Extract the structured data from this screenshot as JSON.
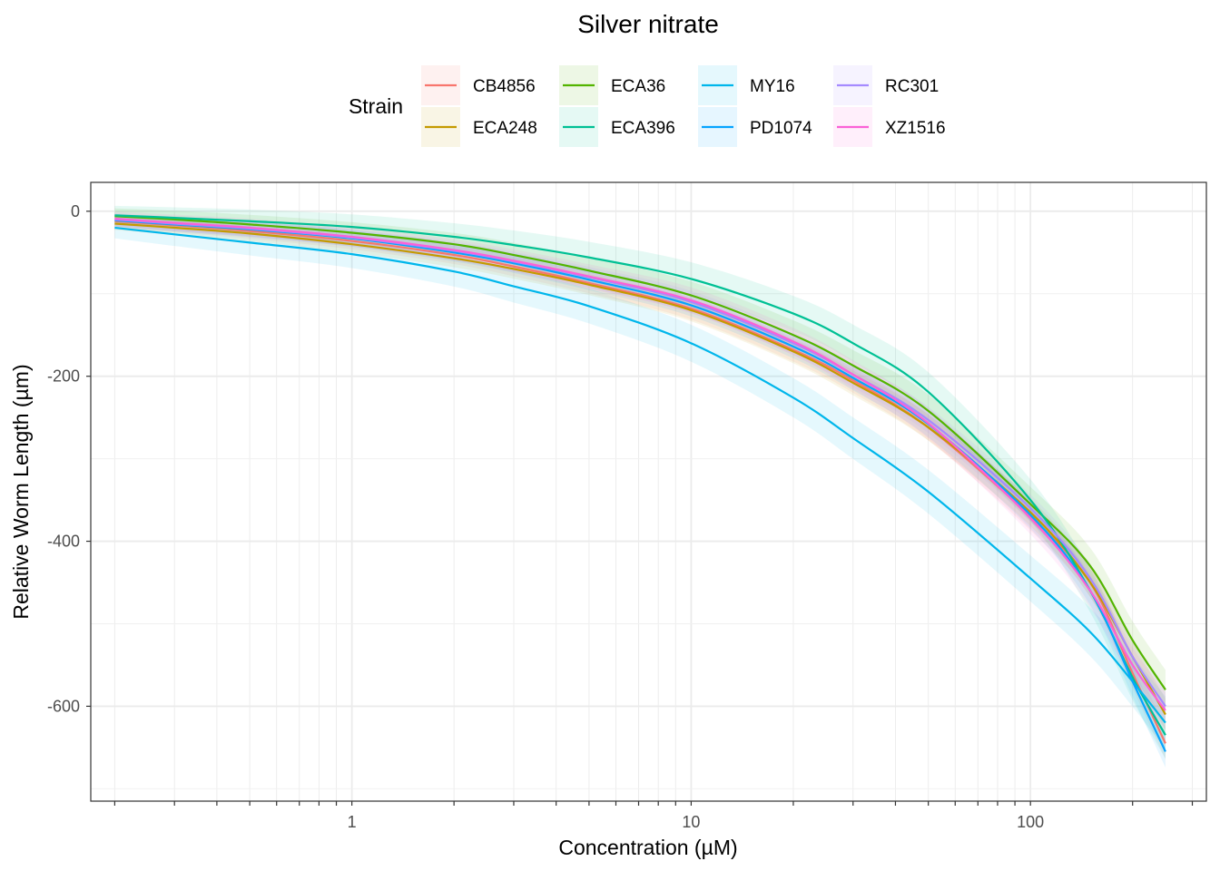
{
  "chart_data": {
    "type": "line",
    "title": "Silver nitrate",
    "xlabel": "Concentration (µM)",
    "ylabel": "Relative Worm Length (µm)",
    "x_scale": "log10",
    "xlim": [
      0.17,
      330
    ],
    "ylim": [
      -715,
      35
    ],
    "grid": true,
    "x_ticks": [
      1,
      10,
      100
    ],
    "x_tick_labels": [
      "1",
      "10",
      "100"
    ],
    "y_ticks": [
      0,
      -200,
      -400,
      -600
    ],
    "y_tick_labels": [
      "0",
      "-200",
      "-400",
      "-600"
    ],
    "legend": {
      "title": "Strain",
      "position": "top"
    },
    "x": [
      0.2,
      0.3,
      0.5,
      1,
      2,
      3,
      5,
      10,
      20,
      30,
      50,
      100,
      150,
      200,
      250
    ],
    "series": [
      {
        "name": "CB4856",
        "color": "#F8766D",
        "band": 12,
        "values": [
          -12,
          -17,
          -24,
          -36,
          -53,
          -67,
          -87,
          -118,
          -168,
          -205,
          -262,
          -370,
          -450,
          -560,
          -645
        ]
      },
      {
        "name": "ECA248",
        "color": "#C49A00",
        "band": 12,
        "values": [
          -15,
          -20,
          -27,
          -40,
          -57,
          -70,
          -89,
          -120,
          -170,
          -208,
          -262,
          -365,
          -450,
          -540,
          -610
        ]
      },
      {
        "name": "ECA36",
        "color": "#53B400",
        "band": 15,
        "values": [
          -6,
          -10,
          -16,
          -26,
          -40,
          -53,
          -72,
          -102,
          -150,
          -187,
          -242,
          -355,
          -430,
          -520,
          -580
        ]
      },
      {
        "name": "ECA396",
        "color": "#00C094",
        "band": 18,
        "values": [
          -5,
          -8,
          -12,
          -19,
          -31,
          -41,
          -56,
          -82,
          -124,
          -160,
          -219,
          -350,
          -460,
          -565,
          -635
        ]
      },
      {
        "name": "MY16",
        "color": "#00B6EB",
        "band": 20,
        "values": [
          -20,
          -28,
          -38,
          -52,
          -73,
          -91,
          -115,
          -160,
          -226,
          -275,
          -340,
          -445,
          -510,
          -570,
          -620
        ]
      },
      {
        "name": "PD1074",
        "color": "#06A4FF",
        "band": 12,
        "values": [
          -11,
          -16,
          -22,
          -33,
          -50,
          -63,
          -83,
          -114,
          -164,
          -202,
          -258,
          -368,
          -460,
          -570,
          -655
        ]
      },
      {
        "name": "RC301",
        "color": "#A58AFF",
        "band": 12,
        "values": [
          -10,
          -15,
          -21,
          -32,
          -48,
          -61,
          -80,
          -110,
          -160,
          -198,
          -253,
          -360,
          -445,
          -540,
          -600
        ]
      },
      {
        "name": "XZ1516",
        "color": "#FB61D7",
        "band": 14,
        "values": [
          -9,
          -14,
          -20,
          -31,
          -47,
          -60,
          -79,
          -108,
          -158,
          -198,
          -257,
          -372,
          -460,
          -550,
          -605
        ]
      }
    ]
  }
}
